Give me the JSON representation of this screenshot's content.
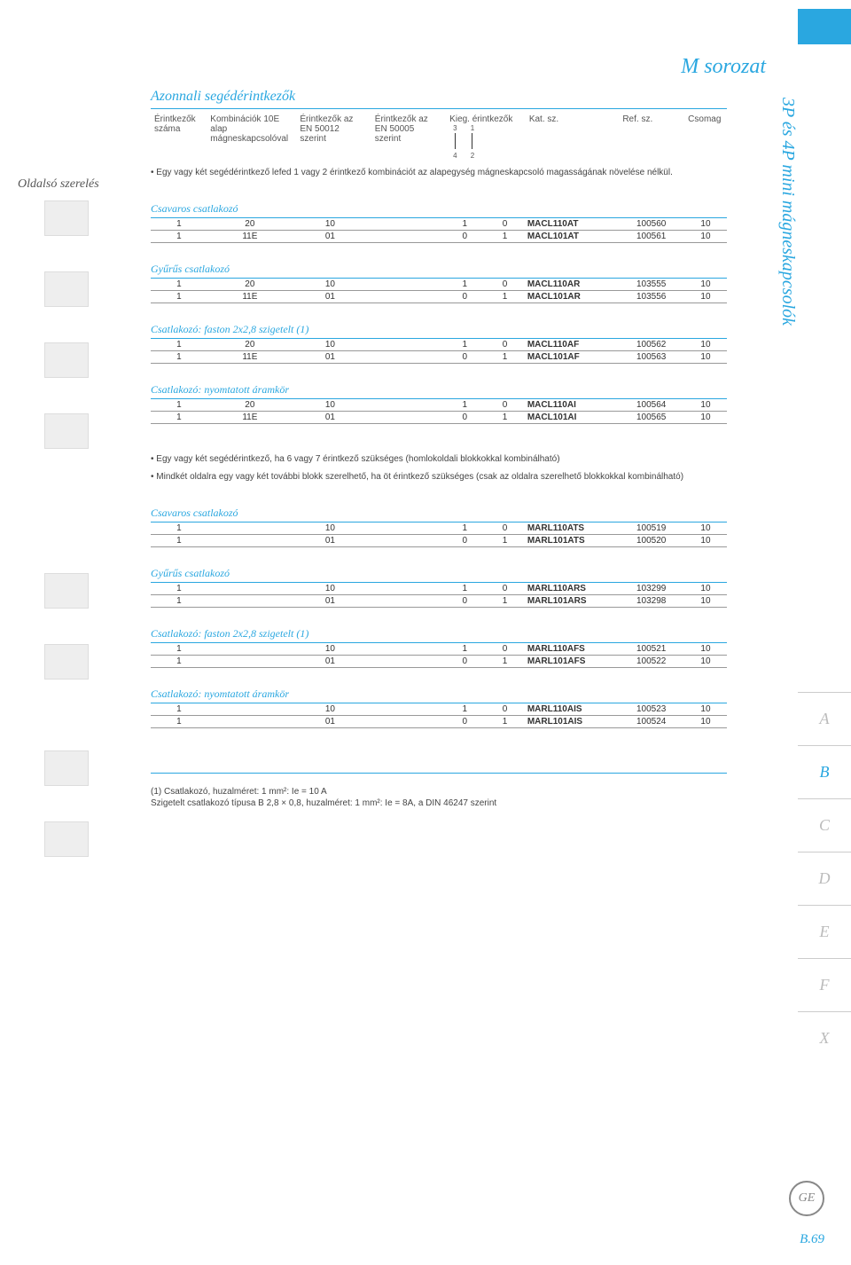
{
  "page": {
    "title": "M sorozat",
    "vertical": "3P és 4P mini mágneskapcsolók",
    "pagenum": "B.69",
    "left_label": "Oldalsó szerelés"
  },
  "side_tabs": [
    "A",
    "B",
    "C",
    "D",
    "E",
    "F",
    "X"
  ],
  "section1": {
    "title": "Azonnali segédérintkezők",
    "headers": [
      "Érintkezők száma",
      "Kombinációk 10E alap mágneskapcsolóval",
      "Érintkezők az EN 50012 szerint",
      "Érintkezők az EN 50005 szerint",
      "Kieg. érintkezők",
      " ",
      "Kat. sz.",
      "Ref. sz.",
      "Csomag"
    ],
    "schem_top": [
      "3",
      "1"
    ],
    "schem_bot": [
      "4",
      "2"
    ],
    "note": "Egy vagy két segédérintkező lefed 1 vagy 2 érintkező kombinációt az alapegység mágneskapcsoló magasságának növelése nélkül.",
    "groups": [
      {
        "label": "Csavaros csatlakozó",
        "rows": [
          [
            "1",
            "20",
            "10",
            "",
            "1",
            "0",
            "MACL110AT",
            "100560",
            "10"
          ],
          [
            "1",
            "11E",
            "01",
            "",
            "0",
            "1",
            "MACL101AT",
            "100561",
            "10"
          ]
        ]
      },
      {
        "label": "Gyűrűs csatlakozó",
        "rows": [
          [
            "1",
            "20",
            "10",
            "",
            "1",
            "0",
            "MACL110AR",
            "103555",
            "10"
          ],
          [
            "1",
            "11E",
            "01",
            "",
            "0",
            "1",
            "MACL101AR",
            "103556",
            "10"
          ]
        ]
      },
      {
        "label": "Csatlakozó: faston 2x2,8 szigetelt (1)",
        "rows": [
          [
            "1",
            "20",
            "10",
            "",
            "1",
            "0",
            "MACL110AF",
            "100562",
            "10"
          ],
          [
            "1",
            "11E",
            "01",
            "",
            "0",
            "1",
            "MACL101AF",
            "100563",
            "10"
          ]
        ]
      },
      {
        "label": "Csatlakozó: nyomtatott áramkör",
        "rows": [
          [
            "1",
            "20",
            "10",
            "",
            "1",
            "0",
            "MACL110AI",
            "100564",
            "10"
          ],
          [
            "1",
            "11E",
            "01",
            "",
            "0",
            "1",
            "MACL101AI",
            "100565",
            "10"
          ]
        ]
      }
    ]
  },
  "section2": {
    "notes": [
      "Egy vagy két segédérintkező, ha 6 vagy 7 érintkező szükséges (homlokoldali blokkokkal kombinálható)",
      "Mindkét oldalra egy vagy két további blokk szerelhető, ha öt érintkező szükséges (csak az oldalra szerelhető blokkokkal kombinálható)"
    ],
    "groups": [
      {
        "label": "Csavaros csatlakozó",
        "rows": [
          [
            "1",
            "",
            "10",
            "",
            "1",
            "0",
            "MARL110ATS",
            "100519",
            "10"
          ],
          [
            "1",
            "",
            "01",
            "",
            "0",
            "1",
            "MARL101ATS",
            "100520",
            "10"
          ]
        ]
      },
      {
        "label": "Gyűrűs csatlakozó",
        "rows": [
          [
            "1",
            "",
            "10",
            "",
            "1",
            "0",
            "MARL110ARS",
            "103299",
            "10"
          ],
          [
            "1",
            "",
            "01",
            "",
            "0",
            "1",
            "MARL101ARS",
            "103298",
            "10"
          ]
        ]
      },
      {
        "label": "Csatlakozó: faston 2x2,8 szigetelt (1)",
        "rows": [
          [
            "1",
            "",
            "10",
            "",
            "1",
            "0",
            "MARL110AFS",
            "100521",
            "10"
          ],
          [
            "1",
            "",
            "01",
            "",
            "0",
            "1",
            "MARL101AFS",
            "100522",
            "10"
          ]
        ]
      },
      {
        "label": "Csatlakozó: nyomtatott áramkör",
        "rows": [
          [
            "1",
            "",
            "10",
            "",
            "1",
            "0",
            "MARL110AIS",
            "100523",
            "10"
          ],
          [
            "1",
            "",
            "01",
            "",
            "0",
            "1",
            "MARL101AIS",
            "100524",
            "10"
          ]
        ]
      }
    ]
  },
  "footnote": "(1) Csatlakozó, huzalméret: 1 mm²: Ie = 10 A\n    Szigetelt csatlakozó típusa B 2,8 × 0,8, huzalméret: 1 mm²: Ie = 8A, a DIN 46247 szerint",
  "colors": {
    "accent": "#2aa7e0",
    "text": "#333",
    "muted": "#888"
  }
}
